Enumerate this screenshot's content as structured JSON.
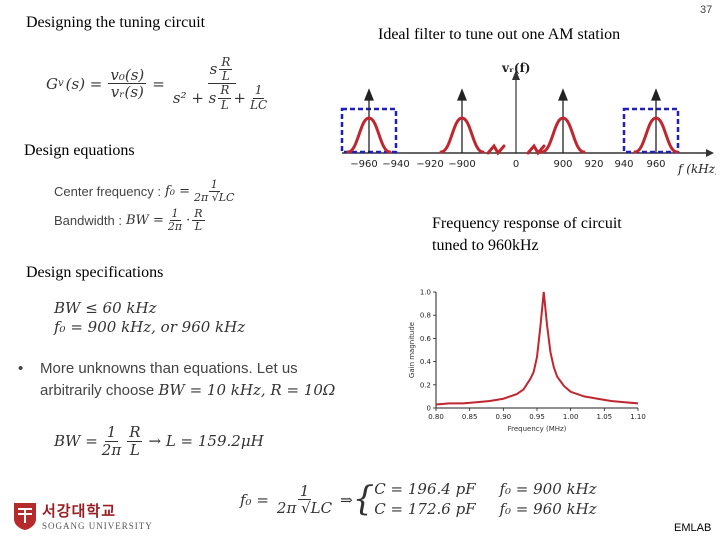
{
  "page_number": "37",
  "left": {
    "title": "Designing the tuning circuit",
    "transfer": {
      "lhs": "G",
      "lhs_sub": "v",
      "lhs_arg": "(s) =",
      "num1": "v₀(s)",
      "den1": "vᵣ(s)",
      "eq": "=",
      "num2_s": "s",
      "num2_r": "R",
      "num2_l": "L",
      "den2_s2": "s² + s",
      "den2_r": "R",
      "den2_l": "L",
      "den2_plus": "+",
      "den2_1": "1",
      "den2_lc": "LC"
    },
    "design_equations": "Design equations",
    "eq_center_label": "Center frequency  :",
    "eq_center_lhs": "f₀ =",
    "eq_center_num": "1",
    "eq_center_den": "2π √LC",
    "eq_bw_label": "Bandwidth  :",
    "eq_bw_lhs": "BW =",
    "eq_bw_num1": "1",
    "eq_bw_den1": "2π",
    "eq_bw_dot": "·",
    "eq_bw_num2": "R",
    "eq_bw_den2": "L",
    "design_specifications": "Design specifications",
    "spec1": "BW ≤ 60 kHz",
    "spec2": "f₀ = 900 kHz, or 960 kHz",
    "bullet_line1": "More   unknowns   than   equations.   Let   us",
    "bullet_line2": "arbitrarily choose ",
    "bullet_line2_math": "BW = 10 kHz, R = 10Ω",
    "bw_lhs": "BW =",
    "bw_num1": "1",
    "bw_den1": "2π",
    "bw_num2": "R",
    "bw_den2": "L",
    "bw_result": "→ L = 159.2μH",
    "f0_lhs": "f₀ =",
    "f0_num": "1",
    "f0_den": "2π √LC",
    "f0_arrow": "⇒",
    "case1": "C = 196.4 pF     f₀ = 900 kHz",
    "case2": "C = 172.6 pF     f₀ = 960 kHz"
  },
  "right": {
    "spectrum_title": "Ideal filter to tune out one AM station",
    "spectrum_axis_label": "vᵣ(f)",
    "spectrum_x_unit": "f (kHz)",
    "spectrum_ticks": [
      "−960",
      "−940",
      "−920",
      "−900",
      "0",
      "900",
      "920",
      "940",
      "960"
    ],
    "freq_caption_line1": "Frequency response of circuit",
    "freq_caption_line2": "tuned to 960kHz"
  },
  "logo": {
    "korean": "서강대학교",
    "english": "SOGANG UNIVERSITY"
  },
  "footer": "EMLAB",
  "colors": {
    "curve": "#c0262f",
    "box": "#1f1fbf",
    "text_eq": "#444444"
  },
  "chart_data": {
    "type": "line",
    "title": "",
    "xlabel": "Frequency (MHz)",
    "ylabel": "Gain magnitude",
    "xlim": [
      0.8,
      1.1
    ],
    "ylim": [
      0,
      1.0
    ],
    "x_ticks": [
      "0.80",
      "0.85",
      "0.90",
      "0.95",
      "1.00",
      "1.05",
      "1.10"
    ],
    "y_ticks": [
      "0",
      "0.2",
      "0.4",
      "0.6",
      "0.8",
      "1.0"
    ],
    "grid": false,
    "series": [
      {
        "center_mhz": 0.96,
        "bandwidth_mhz": 0.01,
        "x": [
          0.8,
          0.82,
          0.84,
          0.86,
          0.88,
          0.9,
          0.91,
          0.92,
          0.93,
          0.94,
          0.945,
          0.95,
          0.955,
          0.96,
          0.965,
          0.97,
          0.975,
          0.98,
          0.99,
          1.0,
          1.02,
          1.04,
          1.06,
          1.08,
          1.1
        ],
        "y": [
          0.03,
          0.04,
          0.04,
          0.05,
          0.06,
          0.08,
          0.1,
          0.12,
          0.16,
          0.25,
          0.31,
          0.44,
          0.7,
          1.0,
          0.71,
          0.48,
          0.35,
          0.27,
          0.19,
          0.14,
          0.1,
          0.08,
          0.06,
          0.05,
          0.04
        ]
      }
    ]
  }
}
